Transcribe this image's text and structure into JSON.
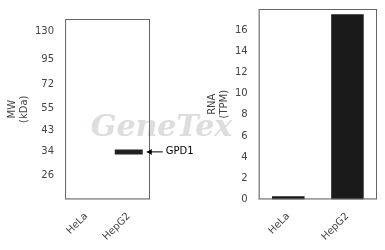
{
  "chart_data": [
    {
      "type": "blot",
      "categories": [
        "HeLa",
        "HepG2"
      ],
      "values": [
        null,
        34
      ],
      "color": "#222222",
      "annotations": [
        "GPD1"
      ],
      "ylabel": [
        "MW",
        "(kDa)"
      ],
      "log": "y",
      "ylim": [
        20,
        150
      ],
      "yticks": [
        130,
        95,
        72,
        55,
        43,
        34,
        26
      ],
      "grid": false
    },
    {
      "type": "bar",
      "categories": [
        "HeLa",
        "HepG2"
      ],
      "values": [
        0.3,
        17.5
      ],
      "color": "#1a1a1a",
      "ylabel": [
        "RNA",
        "(TPM)"
      ],
      "ylim": [
        0,
        18
      ],
      "yticks": [
        0,
        2,
        4,
        6,
        8,
        10,
        12,
        14,
        16
      ],
      "grid": false,
      "annotation": "GeneTex"
    }
  ]
}
